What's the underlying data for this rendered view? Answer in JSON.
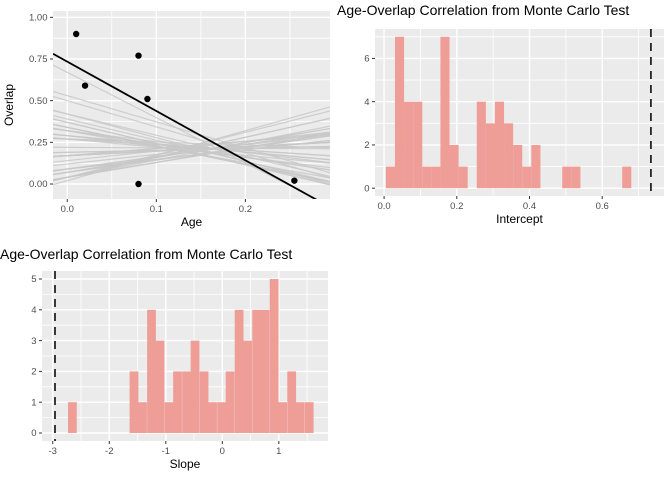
{
  "figure": {
    "background": "#FFFFFF",
    "panel_background": "#EBEBEB",
    "grid_color": "#FFFFFF",
    "bar_color": "#EF9D97",
    "sim_line_color": "#C8C8C8",
    "fit_line_color": "#000000",
    "point_color": "#000000",
    "vline_color": "#1A1A1A",
    "tick_label_color": "#4D4D4D",
    "axis_title_color": "#000000",
    "title_color": "#000000"
  },
  "chart_data": [
    {
      "type": "scatter",
      "title": "",
      "xlabel": "Age",
      "ylabel": "Overlap",
      "xlim": [
        -0.016,
        0.295
      ],
      "ylim": [
        -0.09,
        1.038
      ],
      "x_ticks": [
        0,
        0.1,
        0.2
      ],
      "x_tick_labels": [
        "0.0",
        "0.1",
        "0.2"
      ],
      "x_minor_ticks": [
        0.05,
        0.15,
        0.25
      ],
      "y_ticks": [
        0,
        0.25,
        0.5,
        0.75,
        1
      ],
      "y_tick_labels": [
        "0.00",
        "0.25",
        "0.50",
        "0.75",
        "1.00"
      ],
      "y_minor_ticks": [
        0.125,
        0.375,
        0.625,
        0.875
      ],
      "points": [
        [
          0.01,
          0.9
        ],
        [
          0.02,
          0.59
        ],
        [
          0.08,
          0.77
        ],
        [
          0.09,
          0.51
        ],
        [
          0.08,
          0.0
        ],
        [
          0.255,
          0.02
        ]
      ],
      "fit_line": {
        "intercept": 0.734,
        "slope": -2.96
      },
      "sim_lines": [
        [
          0.67,
          -2.72
        ],
        [
          0.53,
          -1.57
        ],
        [
          0.5,
          -1.57
        ],
        [
          0.42,
          -1.42
        ],
        [
          0.42,
          -1.27
        ],
        [
          0.39,
          -1.27
        ],
        [
          0.37,
          -1.27
        ],
        [
          0.37,
          -1.27
        ],
        [
          0.34,
          -1.11
        ],
        [
          0.34,
          -1.11
        ],
        [
          0.34,
          -1.11
        ],
        [
          0.32,
          -0.96
        ],
        [
          0.32,
          -0.8
        ],
        [
          0.32,
          -0.8
        ],
        [
          0.32,
          -0.65
        ],
        [
          0.29,
          -0.65
        ],
        [
          0.29,
          -0.49
        ],
        [
          0.29,
          -0.49
        ],
        [
          0.27,
          -0.49
        ],
        [
          0.27,
          -0.34
        ],
        [
          0.27,
          -0.34
        ],
        [
          0.27,
          -0.18
        ],
        [
          0.22,
          -0.03
        ],
        [
          0.19,
          0.12
        ],
        [
          0.19,
          0.12
        ],
        [
          0.17,
          0.27
        ],
        [
          0.17,
          0.27
        ],
        [
          0.17,
          0.27
        ],
        [
          0.17,
          0.27
        ],
        [
          0.17,
          0.43
        ],
        [
          0.17,
          0.43
        ],
        [
          0.17,
          0.43
        ],
        [
          0.14,
          0.58
        ],
        [
          0.12,
          0.58
        ],
        [
          0.09,
          0.58
        ],
        [
          0.09,
          0.58
        ],
        [
          0.09,
          0.74
        ],
        [
          0.09,
          0.74
        ],
        [
          0.07,
          0.74
        ],
        [
          0.07,
          0.74
        ],
        [
          0.07,
          0.89
        ],
        [
          0.07,
          0.89
        ],
        [
          0.04,
          0.89
        ],
        [
          0.04,
          0.89
        ],
        [
          0.04,
          0.89
        ],
        [
          0.04,
          1.04
        ],
        [
          0.04,
          1.2
        ],
        [
          0.04,
          1.2
        ],
        [
          0.04,
          1.35
        ],
        [
          0.02,
          1.5
        ]
      ]
    },
    {
      "type": "bar",
      "title": "Age-Overlap Correlation from Monte Carlo Test",
      "xlabel": "Intercept",
      "ylabel": "",
      "xlim": [
        -0.025,
        0.77
      ],
      "ylim": [
        -0.36,
        7.36
      ],
      "x_ticks": [
        0,
        0.2,
        0.4,
        0.6
      ],
      "x_tick_labels": [
        "0.0",
        "0.2",
        "0.4",
        "0.6"
      ],
      "x_minor_ticks": [
        0.1,
        0.3,
        0.5,
        0.7
      ],
      "y_ticks": [
        0,
        2,
        4,
        6
      ],
      "y_tick_labels": [
        "0",
        "2",
        "4",
        "6"
      ],
      "y_minor_ticks": [
        1,
        3,
        5,
        7
      ],
      "bin_width": 0.025,
      "bars": [
        [
          0.005,
          1
        ],
        [
          0.03,
          7
        ],
        [
          0.055,
          4
        ],
        [
          0.08,
          4
        ],
        [
          0.105,
          1
        ],
        [
          0.13,
          1
        ],
        [
          0.155,
          7
        ],
        [
          0.18,
          2
        ],
        [
          0.205,
          1
        ],
        [
          0.255,
          4
        ],
        [
          0.28,
          3
        ],
        [
          0.305,
          4
        ],
        [
          0.33,
          3
        ],
        [
          0.355,
          2
        ],
        [
          0.38,
          1
        ],
        [
          0.405,
          2
        ],
        [
          0.49,
          1
        ],
        [
          0.515,
          1
        ],
        [
          0.655,
          1
        ]
      ],
      "vline": 0.734
    },
    {
      "type": "bar",
      "title": "Age-Overlap Correlation from Monte Carlo Test",
      "xlabel": "Slope",
      "ylabel": "",
      "xlim": [
        -3.19,
        1.87
      ],
      "ylim": [
        -0.26,
        5.26
      ],
      "x_ticks": [
        -3,
        -2,
        -1,
        0,
        1
      ],
      "x_tick_labels": [
        "-3",
        "-2",
        "-1",
        "0",
        "1"
      ],
      "x_minor_ticks": [
        -2.5,
        -1.5,
        -0.5,
        0.5,
        1.5
      ],
      "y_ticks": [
        0,
        1,
        2,
        3,
        4,
        5
      ],
      "y_tick_labels": [
        "0",
        "1",
        "2",
        "3",
        "4",
        "5"
      ],
      "y_minor_ticks": [
        0.5,
        1.5,
        2.5,
        3.5,
        4.5
      ],
      "bin_width": 0.155,
      "bars": [
        [
          -2.73,
          1
        ],
        [
          -1.64,
          2
        ],
        [
          -1.49,
          1
        ],
        [
          -1.33,
          4
        ],
        [
          -1.18,
          3
        ],
        [
          -1.02,
          1
        ],
        [
          -0.87,
          2
        ],
        [
          -0.71,
          2
        ],
        [
          -0.56,
          3
        ],
        [
          -0.4,
          2
        ],
        [
          -0.25,
          1
        ],
        [
          -0.09,
          1
        ],
        [
          0.06,
          2
        ],
        [
          0.22,
          4
        ],
        [
          0.37,
          3
        ],
        [
          0.53,
          4
        ],
        [
          0.68,
          4
        ],
        [
          0.84,
          5
        ],
        [
          0.99,
          1
        ],
        [
          1.15,
          2
        ],
        [
          1.3,
          1
        ],
        [
          1.46,
          1
        ]
      ],
      "vline": -2.96
    }
  ]
}
